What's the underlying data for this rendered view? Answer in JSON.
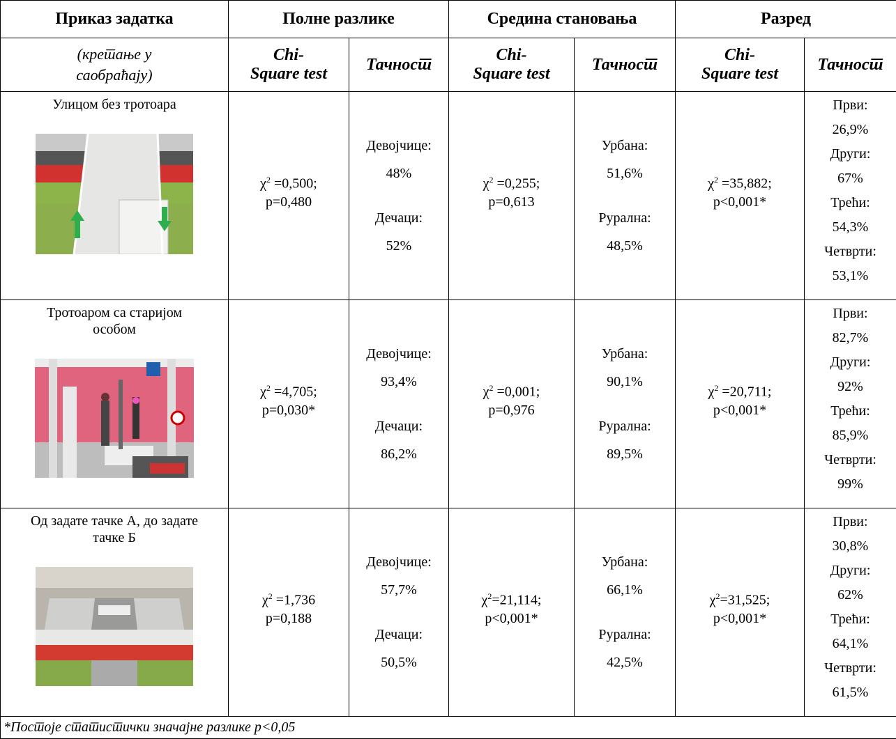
{
  "chi_symbol": "χ",
  "chi_sup": "2",
  "header": {
    "task_title": "Приказ задатка",
    "task_subtitle": "(кретање у саобраћају)",
    "groups": [
      "Полне разлике",
      "Средина становања",
      "Разред"
    ],
    "chi_label": [
      "Chi-",
      "Square test"
    ],
    "accuracy_label": "Тачност"
  },
  "rows": [
    {
      "task": "Улицом без тротоара",
      "gender": {
        "stat": " =0,500;",
        "p": "p=0,480"
      },
      "gender_accuracy": [
        "Девојчице:",
        "48%",
        "Дечаци:",
        "52%"
      ],
      "residence": {
        "stat": " =0,255;",
        "p": "p=0,613"
      },
      "residence_accuracy": [
        "Урбана:",
        "51,6%",
        "Рурална:",
        "48,5%"
      ],
      "grade": {
        "stat": " =35,882;",
        "p": "p<0,001*"
      },
      "grade_accuracy": [
        "Први:",
        "26,9%",
        "Други:",
        "67%",
        "Трећи:",
        "54,3%",
        "Четврти:",
        "53,1%"
      ]
    },
    {
      "task": "Тротоаром са старијом особом",
      "gender": {
        "stat": " =4,705;",
        "p": "p=0,030*"
      },
      "gender_accuracy": [
        "Девојчице:",
        "93,4%",
        "Дечаци:",
        "86,2%"
      ],
      "residence": {
        "stat": " =0,001;",
        "p": "p=0,976"
      },
      "residence_accuracy": [
        "Урбана:",
        "90,1%",
        "Рурална:",
        "89,5%"
      ],
      "grade": {
        "stat": " =20,711;",
        "p": "p<0,001*"
      },
      "grade_accuracy": [
        "Први:",
        "82,7%",
        "Други:",
        "92%",
        "Трећи:",
        "85,9%",
        "Четврти:",
        "99%"
      ]
    },
    {
      "task": "Од задате тачке А, до задате тачке Б",
      "gender": {
        "stat": " =1,736",
        "p": "p=0,188"
      },
      "gender_accuracy": [
        "Девојчице:",
        "57,7%",
        "Дечаци:",
        "50,5%"
      ],
      "residence": {
        "stat": "=21,114;",
        "p": "p<0,001*"
      },
      "residence_accuracy": [
        "Урбана:",
        "66,1%",
        "Рурална:",
        "42,5%"
      ],
      "grade": {
        "stat": "=31,525;",
        "p": "p<0,001*"
      },
      "grade_accuracy": [
        "Први:",
        "30,8%",
        "Други:",
        "62%",
        "Трећи:",
        "64,1%",
        "Четврти:",
        "61,5%"
      ]
    }
  ],
  "footnote": "*Постоје статистички значајне разлике p<0,05"
}
